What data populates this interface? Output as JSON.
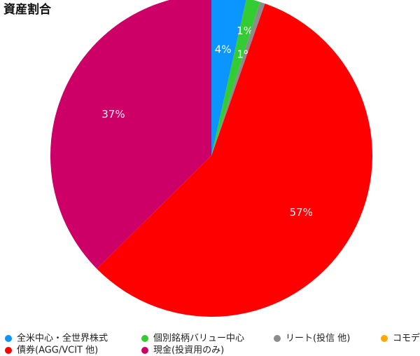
{
  "chart_data": {
    "type": "pie",
    "title": "資産割合",
    "categories": [
      "全米中心・全世界株式",
      "個別銘柄バリュー中心",
      "リート(投信 他)",
      "コモデ",
      "債券(AGG/VCIT 他)",
      "現金(投資用のみ)"
    ],
    "values": [
      3.5,
      1.4,
      0.5,
      0,
      57.2,
      37.4
    ],
    "value_labels": [
      "4%",
      "1%",
      "1%",
      null,
      "57%",
      "37%"
    ],
    "colors": [
      "#0a95ff",
      "#33cc33",
      "#8c8c8c",
      "#ffaa00",
      "#ff0000",
      "#cc0066"
    ]
  }
}
